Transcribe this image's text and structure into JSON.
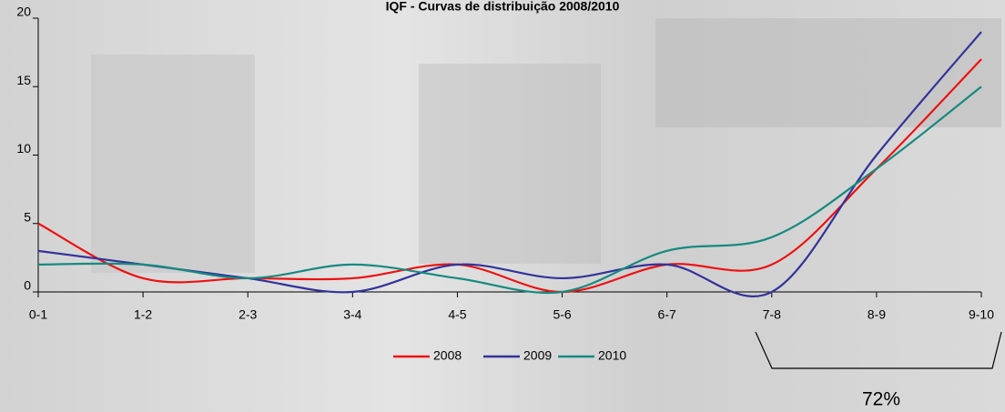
{
  "chart_data": {
    "type": "line",
    "title": "IQF - Curvas de distribuição 2008/2010",
    "categories": [
      "0-1",
      "1-2",
      "2-3",
      "3-4",
      "4-5",
      "5-6",
      "6-7",
      "7-8",
      "8-9",
      "9-10"
    ],
    "series": [
      {
        "name": "2008",
        "color": "#ee1111",
        "values": [
          5,
          1,
          1,
          1,
          2,
          0,
          2,
          2,
          9,
          17
        ]
      },
      {
        "name": "2009",
        "color": "#33339a",
        "values": [
          3,
          2,
          1,
          0,
          2,
          1,
          2,
          0,
          10,
          19
        ]
      },
      {
        "name": "2010",
        "color": "#178a80",
        "values": [
          2,
          2,
          1,
          2,
          1,
          0,
          3,
          4,
          9,
          15
        ]
      }
    ],
    "ylim": [
      0,
      20
    ],
    "yticks": [
      0,
      5,
      10,
      15,
      20
    ],
    "grid": false,
    "smooth": true,
    "legend": "bottom",
    "annotation": "72%"
  }
}
